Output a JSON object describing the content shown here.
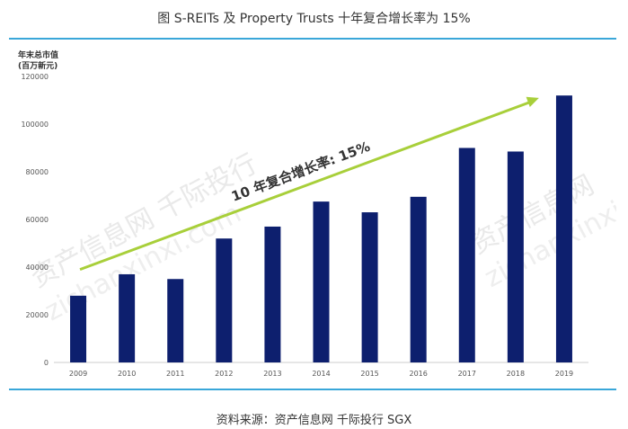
{
  "header": {
    "title": "图 S-REITs 及 Property Trusts 十年复合增长率为 15%"
  },
  "footer": {
    "source": "资料来源：资产信息网 千际投行 SGX"
  },
  "watermark": {
    "line1": "资产信息网 千际投行",
    "line2": "zichanxinxi.com",
    "right1": "资产信息网",
    "right2": "zichanxinxi"
  },
  "colors": {
    "bar": "#0d1f6e",
    "arrow": "#a8cf3a",
    "rule": "#3aa7d9"
  },
  "chart_data": {
    "type": "bar",
    "title": "",
    "ylabel_line1": "年末总市值",
    "ylabel_line2": "(百万新元)",
    "xlabel": "",
    "categories": [
      "2009",
      "2010",
      "2011",
      "2012",
      "2013",
      "2014",
      "2015",
      "2016",
      "2017",
      "2018",
      "2019"
    ],
    "values": [
      28000,
      37000,
      35000,
      52000,
      57000,
      67500,
      63000,
      69500,
      90000,
      88500,
      112000
    ],
    "ylim": [
      0,
      120000
    ],
    "yticks": [
      0,
      20000,
      40000,
      60000,
      80000,
      100000,
      120000
    ],
    "annotation": {
      "text": "10 年复合增长率: 15%",
      "arrow_from": [
        "2009",
        39000
      ],
      "arrow_to": [
        "2018",
        111000
      ]
    },
    "grid": false,
    "legend": "none"
  }
}
